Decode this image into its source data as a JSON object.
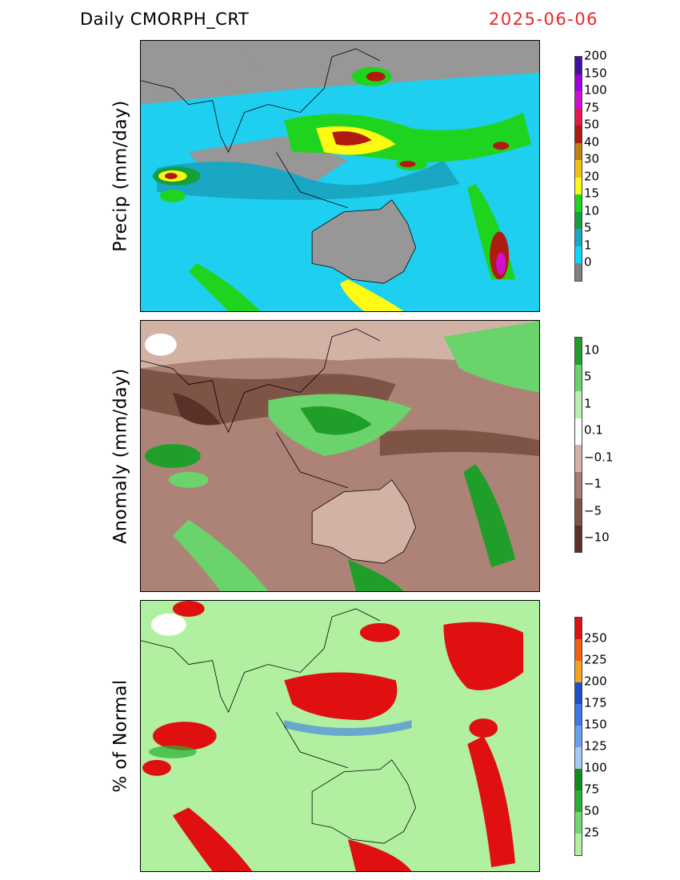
{
  "header": {
    "title": "Daily  CMORPH_CRT",
    "date": "2025-06-06",
    "date_color": "#e8282b"
  },
  "panels": [
    {
      "id": "precip",
      "ylabel": "Precip  (mm/day)",
      "background": "#979797",
      "colorbar": {
        "colors": [
          "#808080",
          "#08d8ff",
          "#1aa7c4",
          "#13a13a",
          "#1fd41f",
          "#fdfb14",
          "#f0c010",
          "#c08010",
          "#b01a10",
          "#e6184a",
          "#d010d0",
          "#a000e0",
          "#4010a0"
        ],
        "labels": [
          "0",
          "1",
          "5",
          "10",
          "15",
          "20",
          "30",
          "40",
          "50",
          "75",
          "100",
          "150",
          "200"
        ]
      }
    },
    {
      "id": "anomaly",
      "ylabel": "Anomaly  (mm/day)",
      "background": "#ad8378",
      "colorbar": {
        "colors": [
          "#5a3028",
          "#7e5447",
          "#a77b71",
          "#d3b2a6",
          "#ffffff",
          "#b8f0b0",
          "#6bd36b",
          "#1f9f2a"
        ],
        "labels": [
          "−10",
          "−5",
          "−1",
          "−0.1",
          "0.1",
          "1",
          "5",
          "10"
        ]
      }
    },
    {
      "id": "percent",
      "ylabel": "%  of  Normal",
      "background": "#b0f0a0",
      "colorbar": {
        "colors": [
          "#b0f0a0",
          "#70d870",
          "#28b030",
          "#128c18",
          "#a8c8f8",
          "#6aa0f0",
          "#3c78e8",
          "#1e50c8",
          "#f8a020",
          "#f06010",
          "#e01010"
        ],
        "labels": [
          "25",
          "50",
          "75",
          "100",
          "125",
          "150",
          "175",
          "200",
          "225",
          "250"
        ]
      }
    }
  ]
}
